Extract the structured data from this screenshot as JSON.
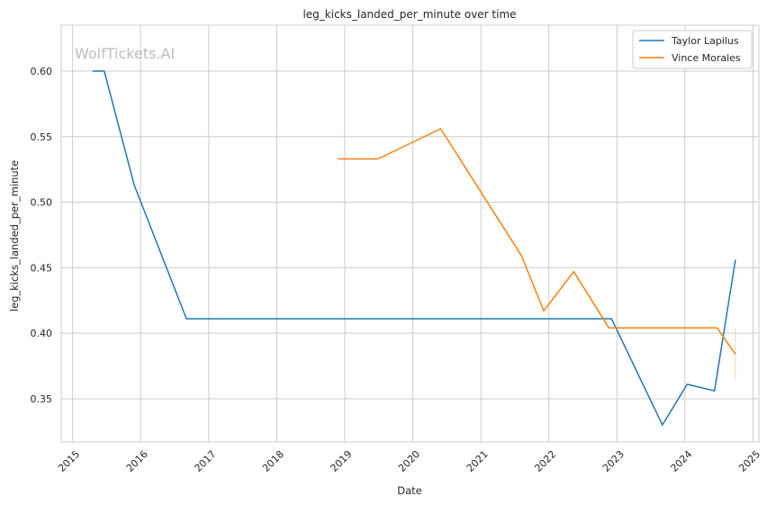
{
  "watermark": "WolfTickets.AI",
  "chart_data": {
    "type": "line",
    "title": "leg_kicks_landed_per_minute over time",
    "xlabel": "Date",
    "ylabel": "leg_kicks_landed_per_minute",
    "x_axis_type": "date",
    "xlim": [
      "2014-11-01",
      "2025-02-01"
    ],
    "ylim": [
      0.317,
      0.635
    ],
    "x_ticks": [
      "2015",
      "2016",
      "2017",
      "2018",
      "2019",
      "2020",
      "2021",
      "2022",
      "2023",
      "2024",
      "2025"
    ],
    "y_ticks": [
      "0.35",
      "0.40",
      "0.45",
      "0.50",
      "0.55",
      "0.60"
    ],
    "grid": true,
    "legend_position": "top-right",
    "series": [
      {
        "name": "Taylor Lapilus",
        "color": "#1f77b4",
        "points": [
          {
            "x": "2015-04-18",
            "y": 0.6
          },
          {
            "x": "2015-06-20",
            "y": 0.6
          },
          {
            "x": "2015-11-28",
            "y": 0.513
          },
          {
            "x": "2016-09-03",
            "y": 0.411
          },
          {
            "x": "2022-12-03",
            "y": 0.411
          },
          {
            "x": "2023-09-02",
            "y": 0.33
          },
          {
            "x": "2024-01-13",
            "y": 0.361
          },
          {
            "x": "2024-06-08",
            "y": 0.356
          },
          {
            "x": "2024-09-28",
            "y": 0.456
          }
        ]
      },
      {
        "name": "Vince Morales",
        "color": "#ff7f0e",
        "points": [
          {
            "x": "2018-11-24",
            "y": 0.533
          },
          {
            "x": "2019-06-29",
            "y": 0.533
          },
          {
            "x": "2020-05-30",
            "y": 0.556
          },
          {
            "x": "2021-08-07",
            "y": 0.459
          },
          {
            "x": "2021-12-04",
            "y": 0.417
          },
          {
            "x": "2022-05-14",
            "y": 0.447
          },
          {
            "x": "2022-11-19",
            "y": 0.404
          },
          {
            "x": "2024-06-22",
            "y": 0.404
          },
          {
            "x": "2024-09-28",
            "y": 0.384
          }
        ],
        "error_bar": {
          "x": "2024-09-28",
          "low": 0.364,
          "high": 0.404
        }
      }
    ]
  }
}
